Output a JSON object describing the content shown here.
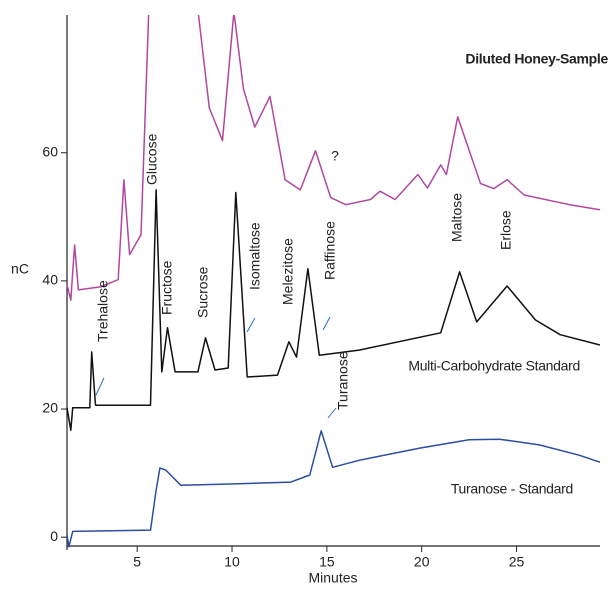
{
  "chart_data": {
    "type": "line",
    "x_label": "Minutes",
    "y_label": "nC",
    "xlim": [
      1.3,
      29.4
    ],
    "ylim": [
      -2,
      81.5
    ],
    "xticks": [
      5,
      10,
      15,
      20,
      25
    ],
    "yticks": [
      0,
      20,
      40,
      60
    ],
    "series": [
      {
        "name": "Diluted Honey-Sample",
        "color": "#b0489f",
        "x": [
          1.3,
          1.5,
          1.7,
          1.9,
          3.1,
          4.0,
          4.3,
          4.6,
          5.2,
          5.7,
          7.9,
          8.8,
          9.5,
          10.1,
          10.6,
          11.2,
          12.0,
          12.8,
          13.6,
          14.4,
          15.2,
          16.0,
          17.3,
          17.8,
          18.6,
          19.8,
          20.3,
          21.0,
          21.3,
          21.9,
          23.1,
          23.8,
          24.5,
          25.4,
          27.8,
          29.4
        ],
        "values": [
          39.4,
          37.0,
          45.6,
          38.6,
          39.1,
          40.2,
          55.8,
          44.1,
          47.2,
          90,
          90,
          67.0,
          61.9,
          82,
          70.0,
          64.0,
          68.8,
          55.8,
          54.2,
          60.3,
          53.0,
          51.9,
          52.7,
          54.0,
          52.7,
          56.6,
          54.5,
          58.1,
          56.6,
          65.6,
          55.2,
          54.4,
          55.8,
          53.4,
          51.9,
          51.1
        ]
      },
      {
        "name": "Multi-Carbohydrate Standard",
        "color": "#111111",
        "x": [
          1.3,
          1.5,
          1.6,
          2.5,
          2.6,
          2.8,
          5.7,
          6.0,
          6.3,
          6.6,
          7.0,
          8.2,
          8.6,
          9.1,
          9.8,
          10.2,
          10.8,
          12.4,
          13.0,
          13.4,
          14.0,
          14.6,
          16.7,
          21.0,
          22.0,
          22.9,
          24.5,
          26.0,
          27.3,
          29.4
        ],
        "values": [
          20.2,
          16.7,
          20.2,
          20.2,
          28.9,
          20.6,
          20.6,
          54.2,
          25.8,
          32.7,
          25.8,
          25.8,
          31.1,
          26.1,
          26.4,
          53.8,
          25.0,
          25.3,
          30.5,
          28.1,
          41.9,
          28.4,
          29.2,
          31.9,
          41.4,
          33.6,
          39.2,
          33.9,
          31.6,
          30.0
        ]
      },
      {
        "name": "Turanose - Standard",
        "color": "#2b4ea0",
        "x": [
          1.3,
          1.4,
          1.6,
          5.7,
          6.0,
          6.2,
          6.5,
          7.3,
          9.9,
          13.1,
          14.1,
          14.7,
          15.3,
          16.7,
          19.9,
          22.5,
          24.1,
          26.2,
          28.3,
          29.4
        ],
        "values": [
          0.3,
          -1.5,
          0.9,
          1.1,
          7.3,
          10.8,
          10.5,
          8.1,
          8.3,
          8.6,
          9.7,
          16.6,
          10.9,
          12.0,
          13.9,
          15.2,
          15.3,
          14.4,
          12.8,
          11.7
        ]
      }
    ],
    "annotations": [
      "Trehalose",
      "Glucose",
      "Fructose",
      "Sucrose",
      "Isomaltose",
      "Melezitose",
      "Raffinose",
      "Maltose",
      "Erlose",
      "Turanose",
      "?"
    ]
  }
}
